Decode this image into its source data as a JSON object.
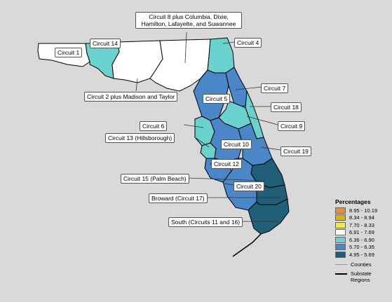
{
  "legend": {
    "title": "Percentages",
    "items": [
      {
        "label": "8.95 - 10.19",
        "color": "#f28c28"
      },
      {
        "label": "8.34 - 8.94",
        "color": "#e0b000"
      },
      {
        "label": "7.70 - 8.33",
        "color": "#f3e84d"
      },
      {
        "label": "6.91 - 7.69",
        "color": "#ffffff"
      },
      {
        "label": "6.36 - 6.90",
        "color": "#6ad1cf"
      },
      {
        "label": "5.70 - 6.35",
        "color": "#4a86c8"
      },
      {
        "label": "4.95 - 5.69",
        "color": "#215f78"
      }
    ],
    "counties_label": "Counties",
    "substate_label": "Substate Regions"
  },
  "labels": {
    "circuit_1": "Circuit 1",
    "circuit_14": "Circuit 14",
    "circuit_8": "Circuit 8 plus Columbia, Dixie, Hamilton, Lafayette, and Suwannee",
    "circuit_4": "Circuit 4",
    "circuit_2": "Circuit 2 plus Madison and Taylor",
    "circuit_7": "Circuit 7",
    "circuit_5": "Circuit 5",
    "circuit_18": "Circuit 18",
    "circuit_6": "Circuit 6",
    "circuit_9": "Circuit 9",
    "circuit_13": "Circuit 13 (Hillsborough)",
    "circuit_10": "Circuit 10",
    "circuit_19": "Circuit 19",
    "circuit_12": "Circuit 12",
    "circuit_15": "Circuit 15 (Palm Beach)",
    "circuit_20": "Circuit 20",
    "circuit_17": "Broward (Circuit 17)",
    "circuit_south": "South (Circuits 11 and 16)"
  },
  "region_fills": {
    "circuit_1": "#ffffff",
    "circuit_14": "#6ad1cf",
    "circuit_2": "#ffffff",
    "circuit_3_8": "#ffffff",
    "circuit_4": "#6ad1cf",
    "circuit_5": "#4a86c8",
    "circuit_6": "#6ad1cf",
    "circuit_7": "#4a86c8",
    "circuit_9": "#6ad1cf",
    "circuit_10": "#4a86c8",
    "circuit_12": "#4a86c8",
    "circuit_13": "#6ad1cf",
    "circuit_15": "#215f78",
    "circuit_17": "#215f78",
    "circuit_18": "#6ad1cf",
    "circuit_19": "#4a86c8",
    "circuit_20": "#4a86c8",
    "circuit_south": "#215f78"
  }
}
